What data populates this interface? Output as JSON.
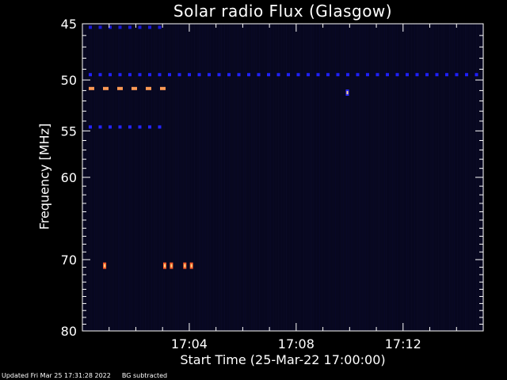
{
  "chart_data": {
    "type": "heatmap",
    "title": "Solar radio Flux (Glasgow)",
    "xlabel": "Start Time (25-Mar-22 17:00:00)",
    "ylabel": "Frequency [MHz]",
    "xlim": [
      "17:00:00",
      "17:15:00"
    ],
    "ylim": [
      45,
      80
    ],
    "y_scale": "log",
    "x_ticks": [
      "17:04",
      "17:08",
      "17:12"
    ],
    "y_ticks": [
      45,
      50,
      55,
      60,
      70,
      80
    ],
    "background_color": "#07071e",
    "features": [
      {
        "kind": "dashed-band",
        "freq_mhz": 45.3,
        "t_start": "17:00:00",
        "t_end": "17:03:00",
        "color": "#1a1ad8"
      },
      {
        "kind": "dashed-band",
        "freq_mhz": 49.5,
        "t_start": "17:00:00",
        "t_end": "17:15:00",
        "color": "#2020ff"
      },
      {
        "kind": "dashed-band",
        "freq_mhz": 50.8,
        "t_start": "17:00:00",
        "t_end": "17:03:00",
        "color": "#ff9a55"
      },
      {
        "kind": "dashed-band",
        "freq_mhz": 54.6,
        "t_start": "17:00:00",
        "t_end": "17:03:00",
        "color": "#2525ff"
      },
      {
        "kind": "spot",
        "freq_mhz": 70.8,
        "time": "17:00:50",
        "color": "#ff5a2a"
      },
      {
        "kind": "spot",
        "freq_mhz": 70.8,
        "time": "17:03:05",
        "color": "#ff5a2a"
      },
      {
        "kind": "spot",
        "freq_mhz": 70.8,
        "time": "17:03:20",
        "color": "#ff5a2a"
      },
      {
        "kind": "spot",
        "freq_mhz": 70.8,
        "time": "17:03:50",
        "color": "#ff5a2a"
      },
      {
        "kind": "spot",
        "freq_mhz": 70.8,
        "time": "17:04:05",
        "color": "#ff5a2a"
      },
      {
        "kind": "spot",
        "freq_mhz": 51.2,
        "time": "17:09:55",
        "color": "#2b2bff"
      }
    ]
  },
  "footer": {
    "updated": "Updated Fri Mar 25 17:31:28 2022",
    "note": "BG subtracted"
  }
}
